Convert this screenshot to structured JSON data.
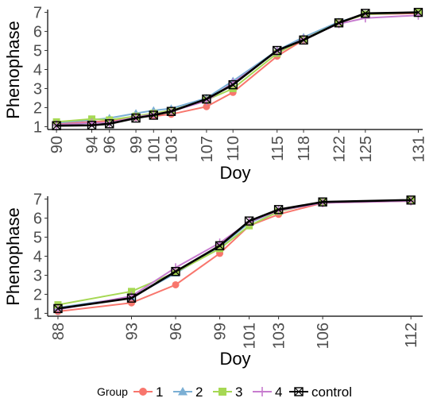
{
  "chart_data": [
    {
      "type": "line",
      "xlabel": "Doy",
      "ylabel": "Phenophase",
      "xlim": [
        89,
        131.5
      ],
      "ylim": [
        0.85,
        7.15
      ],
      "x_ticks": [
        90,
        94,
        96,
        99,
        101,
        103,
        107,
        110,
        115,
        118,
        122,
        125,
        131
      ],
      "y_ticks": [
        1,
        2,
        3,
        4,
        5,
        6,
        7
      ],
      "series": [
        {
          "name": "1",
          "x": [
            90,
            94,
            96,
            99,
            101,
            103,
            107,
            110,
            115,
            118,
            122,
            125,
            131
          ],
          "values": [
            1.15,
            1.25,
            1.3,
            1.5,
            1.55,
            1.65,
            2.05,
            2.8,
            4.7,
            5.55,
            6.45,
            6.9,
            6.95
          ]
        },
        {
          "name": "2",
          "x": [
            90,
            94,
            96,
            99,
            101,
            103,
            107,
            110,
            115,
            118,
            122,
            125,
            131
          ],
          "values": [
            1.2,
            1.35,
            1.45,
            1.7,
            1.85,
            1.95,
            2.5,
            3.4,
            5.0,
            5.7,
            6.5,
            6.9,
            7.0
          ]
        },
        {
          "name": "3",
          "x": [
            90,
            94,
            96,
            99,
            101,
            103,
            107,
            110,
            115,
            118,
            122,
            125,
            131
          ],
          "values": [
            1.25,
            1.4,
            1.35,
            1.55,
            1.7,
            1.85,
            2.4,
            3.0,
            4.85,
            5.6,
            6.45,
            6.9,
            7.0
          ]
        },
        {
          "name": "4",
          "x": [
            90,
            94,
            96,
            99,
            101,
            103,
            107,
            110,
            115,
            118,
            122,
            125,
            131
          ],
          "values": [
            1.1,
            1.2,
            1.2,
            1.5,
            1.65,
            1.8,
            2.35,
            3.3,
            4.95,
            5.6,
            6.4,
            6.7,
            6.85
          ]
        },
        {
          "name": "control",
          "x": [
            90,
            94,
            96,
            99,
            101,
            103,
            107,
            110,
            115,
            118,
            122,
            125,
            131
          ],
          "values": [
            1.05,
            1.07,
            1.15,
            1.45,
            1.6,
            1.8,
            2.45,
            3.2,
            5.0,
            5.55,
            6.45,
            6.95,
            7.0
          ]
        }
      ]
    },
    {
      "type": "line",
      "xlabel": "Doy",
      "ylabel": "Phenophase",
      "xlim": [
        87.3,
        112.8
      ],
      "ylim": [
        0.85,
        7.15
      ],
      "x_ticks": [
        88,
        93,
        96,
        99,
        101,
        103,
        106,
        112
      ],
      "y_ticks": [
        1,
        2,
        3,
        4,
        5,
        6,
        7
      ],
      "series": [
        {
          "name": "1",
          "x": [
            88,
            93,
            96,
            99,
            101,
            103,
            106,
            112
          ],
          "values": [
            1.1,
            1.55,
            2.5,
            4.15,
            5.6,
            6.2,
            6.8,
            6.9
          ]
        },
        {
          "name": "2",
          "x": [
            88,
            93,
            96,
            99,
            101,
            103,
            106,
            112
          ],
          "values": [
            1.3,
            1.85,
            3.1,
            4.5,
            5.75,
            6.4,
            6.85,
            6.95
          ]
        },
        {
          "name": "3",
          "x": [
            88,
            93,
            96,
            99,
            101,
            103,
            106,
            112
          ],
          "values": [
            1.45,
            2.15,
            3.15,
            4.4,
            5.6,
            6.35,
            6.85,
            6.95
          ]
        },
        {
          "name": "4",
          "x": [
            88,
            93,
            96,
            99,
            101,
            103,
            106,
            112
          ],
          "values": [
            1.2,
            1.9,
            3.4,
            4.7,
            5.8,
            6.4,
            6.8,
            6.9
          ]
        },
        {
          "name": "control",
          "x": [
            88,
            93,
            96,
            99,
            101,
            103,
            106,
            112
          ],
          "values": [
            1.25,
            1.8,
            3.2,
            4.55,
            5.85,
            6.45,
            6.85,
            6.95
          ]
        }
      ]
    }
  ],
  "legend": {
    "title": "Group",
    "placement": "bottom",
    "entries": [
      {
        "label": "1",
        "color": "#F8766D",
        "shape": "circle"
      },
      {
        "label": "2",
        "color": "#7BAFD4",
        "shape": "triangle"
      },
      {
        "label": "3",
        "color": "#A6D854",
        "shape": "square"
      },
      {
        "label": "4",
        "color": "#C77CCF",
        "shape": "plus"
      },
      {
        "label": "control",
        "color": "#000000",
        "shape": "boxed-x"
      }
    ]
  },
  "style": {
    "panel_border": "#000000",
    "grid": false
  }
}
